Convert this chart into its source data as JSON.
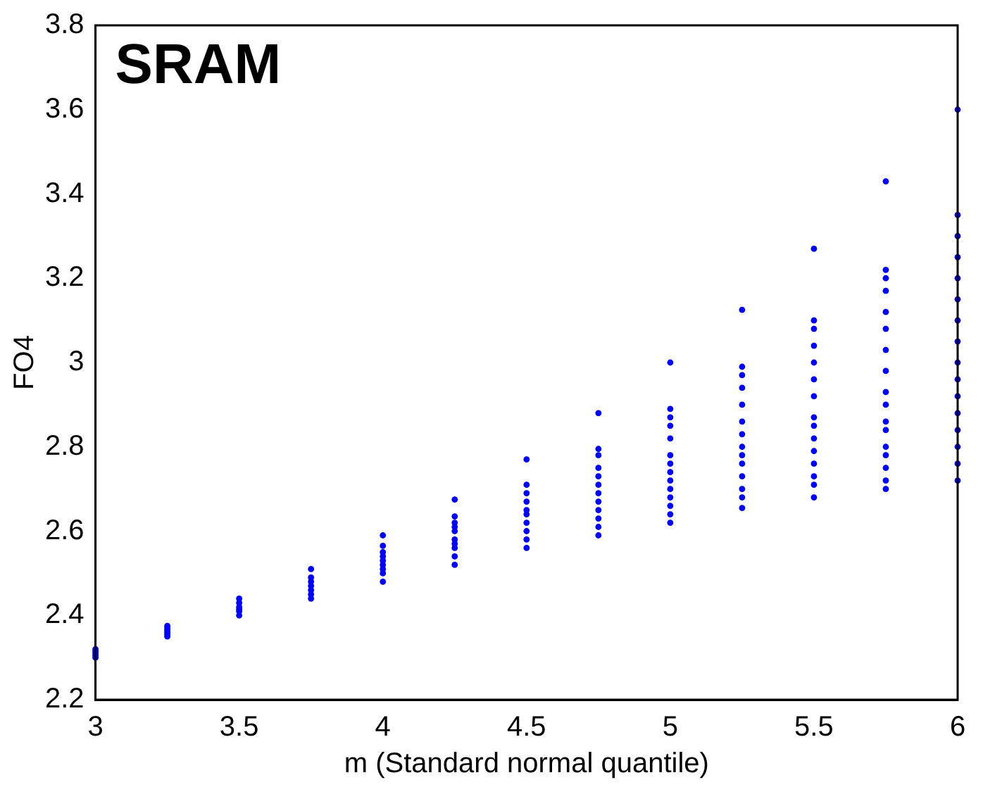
{
  "chart_data": {
    "type": "scatter",
    "title": "SRAM",
    "xlabel": "m (Standard normal quantile)",
    "ylabel": "FO4",
    "xlim": [
      3,
      6
    ],
    "xticks": [
      3,
      3.5,
      4,
      4.5,
      5,
      5.5,
      6
    ],
    "ylim": [
      2.2,
      3.8
    ],
    "yticks": [
      2.2,
      2.4,
      2.6,
      2.8,
      3,
      3.2,
      3.4,
      3.6,
      3.8
    ],
    "grid": false,
    "legend": false,
    "marker": "circle",
    "series": [
      {
        "color": "#0000ff",
        "x": [
          3,
          3,
          3,
          3,
          3,
          3.25,
          3.25,
          3.25,
          3.25,
          3.25,
          3.25,
          3.5,
          3.5,
          3.5,
          3.5,
          3.5,
          3.5,
          3.75,
          3.75,
          3.75,
          3.75,
          3.75,
          3.75,
          3.75,
          4,
          4,
          4,
          4,
          4,
          4,
          4,
          4,
          4,
          4.25,
          4.25,
          4.25,
          4.25,
          4.25,
          4.25,
          4.25,
          4.25,
          4.25,
          4.25,
          4.5,
          4.5,
          4.5,
          4.5,
          4.5,
          4.5,
          4.5,
          4.5,
          4.5,
          4.5,
          4.75,
          4.75,
          4.75,
          4.75,
          4.75,
          4.75,
          4.75,
          4.75,
          4.75,
          4.75,
          4.75,
          4.75,
          5,
          5,
          5,
          5,
          5,
          5,
          5,
          5,
          5,
          5,
          5,
          5,
          5,
          5,
          5.25,
          5.25,
          5.25,
          5.25,
          5.25,
          5.25,
          5.25,
          5.25,
          5.25,
          5.25,
          5.25,
          5.25,
          5.25,
          5.25,
          5.5,
          5.5,
          5.5,
          5.5,
          5.5,
          5.5,
          5.5,
          5.5,
          5.5,
          5.5,
          5.5,
          5.5,
          5.5,
          5.5,
          5.5,
          5.75,
          5.75,
          5.75,
          5.75,
          5.75,
          5.75,
          5.75,
          5.75,
          5.75,
          5.75,
          5.75,
          5.75,
          5.75,
          5.75,
          5.75,
          5.75,
          5.75,
          6,
          6,
          6,
          6,
          6,
          6,
          6,
          6,
          6,
          6,
          6,
          6,
          6,
          6,
          6,
          6
        ],
        "values": [
          2.3,
          2.305,
          2.31,
          2.315,
          2.32,
          2.35,
          2.355,
          2.36,
          2.365,
          2.37,
          2.375,
          2.4,
          2.41,
          2.415,
          2.42,
          2.43,
          2.44,
          2.44,
          2.45,
          2.46,
          2.47,
          2.48,
          2.49,
          2.51,
          2.48,
          2.5,
          2.51,
          2.52,
          2.53,
          2.54,
          2.55,
          2.565,
          2.59,
          2.52,
          2.54,
          2.56,
          2.57,
          2.58,
          2.6,
          2.61,
          2.62,
          2.635,
          2.675,
          2.56,
          2.58,
          2.6,
          2.62,
          2.64,
          2.65,
          2.67,
          2.69,
          2.71,
          2.77,
          2.59,
          2.61,
          2.63,
          2.65,
          2.67,
          2.69,
          2.71,
          2.73,
          2.75,
          2.78,
          2.795,
          2.88,
          2.62,
          2.64,
          2.66,
          2.68,
          2.7,
          2.72,
          2.74,
          2.76,
          2.78,
          2.82,
          2.85,
          2.87,
          2.89,
          3.0,
          2.655,
          2.68,
          2.7,
          2.73,
          2.76,
          2.78,
          2.8,
          2.83,
          2.86,
          2.9,
          2.94,
          2.97,
          2.99,
          3.125,
          2.68,
          2.71,
          2.73,
          2.76,
          2.79,
          2.82,
          2.85,
          2.87,
          2.92,
          2.96,
          3.0,
          3.04,
          3.08,
          3.1,
          3.27,
          2.7,
          2.72,
          2.75,
          2.78,
          2.8,
          2.84,
          2.86,
          2.9,
          2.93,
          2.98,
          3.03,
          3.08,
          3.12,
          3.17,
          3.2,
          3.22,
          3.43,
          2.72,
          2.76,
          2.8,
          2.84,
          2.88,
          2.92,
          2.96,
          3.0,
          3.05,
          3.1,
          3.15,
          3.2,
          3.25,
          3.3,
          3.35,
          3.6
        ]
      }
    ]
  }
}
